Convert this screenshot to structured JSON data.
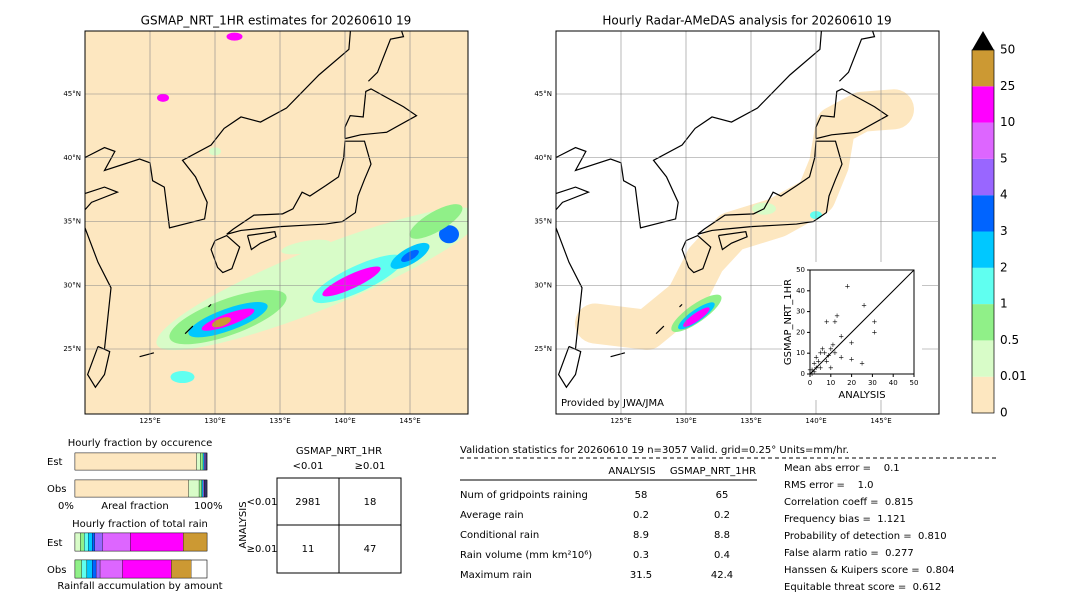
{
  "left_map": {
    "title": "GSMAP_NRT_1HR estimates for 20260610 19",
    "lat_labels": [
      "45°N",
      "40°N",
      "35°N",
      "30°N",
      "25°N"
    ],
    "lon_labels": [
      "125°E",
      "130°E",
      "135°E",
      "140°E",
      "145°E"
    ]
  },
  "right_map": {
    "title": "Hourly Radar-AMeDAS analysis for 20260610 19",
    "lat_labels": [
      "45°N",
      "40°N",
      "35°N",
      "30°N",
      "25°N"
    ],
    "lon_labels": [
      "125°E",
      "130°E",
      "135°E",
      "140°E",
      "145°E"
    ],
    "credit": "Provided by JWA/JMA"
  },
  "colorbar": {
    "labels": [
      "0",
      "0.01",
      "0.5",
      "1",
      "2",
      "3",
      "4",
      "5",
      "10",
      "25",
      "50"
    ],
    "colors": [
      "#fde7c0",
      "#d8fcc8",
      "#90f088",
      "#60fff0",
      "#00c8ff",
      "#0064ff",
      "#9966ff",
      "#dd66ff",
      "#ff00ff",
      "#cc9933"
    ],
    "over_color": "#000000"
  },
  "scatter": {
    "type": "scatter",
    "xlabel": "ANALYSIS",
    "ylabel": "GSMAP_NRT_1HR",
    "xlim": [
      0,
      50
    ],
    "ylim": [
      0,
      50
    ],
    "xticks": [
      0,
      10,
      20,
      30,
      40,
      50
    ],
    "yticks": [
      0,
      10,
      20,
      30,
      40,
      50
    ],
    "x": [
      0,
      1,
      2,
      3,
      5,
      5,
      8,
      10,
      12,
      15,
      20,
      8,
      12,
      13,
      18,
      26,
      31,
      31,
      20,
      6,
      3,
      2,
      4,
      15,
      25,
      10,
      1,
      0,
      7,
      9,
      11
    ],
    "y": [
      0,
      2,
      5,
      8,
      10,
      3,
      6,
      12,
      10,
      8,
      7,
      25,
      25,
      28,
      42,
      33,
      25,
      20,
      15,
      12,
      3,
      1,
      6,
      18,
      5,
      3,
      0,
      2,
      10,
      9,
      14
    ]
  },
  "occurrence": {
    "title": "Hourly fraction by occurence",
    "rows": [
      "Est",
      "Obs"
    ],
    "axis_left": "0%",
    "axis_mid": "Areal fraction",
    "axis_right": "100%",
    "est": [
      92,
      3,
      2,
      1,
      1,
      1
    ],
    "obs": [
      86,
      8,
      2,
      1,
      1,
      2
    ]
  },
  "total_rain": {
    "title": "Hourly fraction of total rain",
    "rows": [
      "Est",
      "Obs"
    ],
    "caption": "Rainfall accumulation by amount",
    "est": [
      4,
      3,
      3,
      3,
      2,
      6,
      21,
      40,
      18
    ],
    "obs": [
      5,
      4,
      4,
      3,
      3,
      17,
      37,
      15,
      0
    ]
  },
  "contingency": {
    "title": "GSMAP_NRT_1HR",
    "col_headers": [
      "<0.01",
      "≥0.01"
    ],
    "row_label": "ANALYSIS",
    "row_headers": [
      "<0.01",
      "≥0.01"
    ],
    "cells": [
      [
        "2981",
        "18"
      ],
      [
        "11",
        "47"
      ]
    ]
  },
  "validation": {
    "header": "Validation statistics for 20260610 19  n=3057 Valid. grid=0.25° Units=mm/hr.",
    "columns": [
      "ANALYSIS",
      "GSMAP_NRT_1HR"
    ],
    "rows": [
      [
        "Num of gridpoints raining",
        "58",
        "65"
      ],
      [
        "Average rain",
        "0.2",
        "0.2"
      ],
      [
        "Conditional rain",
        "8.9",
        "8.8"
      ],
      [
        "Rain volume (mm km²10⁶)",
        "0.3",
        "0.4"
      ],
      [
        "Maximum rain",
        "31.5",
        "42.4"
      ]
    ],
    "scores": [
      "Mean abs error =    0.1",
      "RMS error =    1.0",
      "Correlation coeff =  0.815",
      "Frequency bias =  1.121",
      "Probability of detection =  0.810",
      "False alarm ratio =  0.277",
      "Hanssen & Kuipers score =  0.804",
      "Equitable threat score =  0.612"
    ]
  }
}
